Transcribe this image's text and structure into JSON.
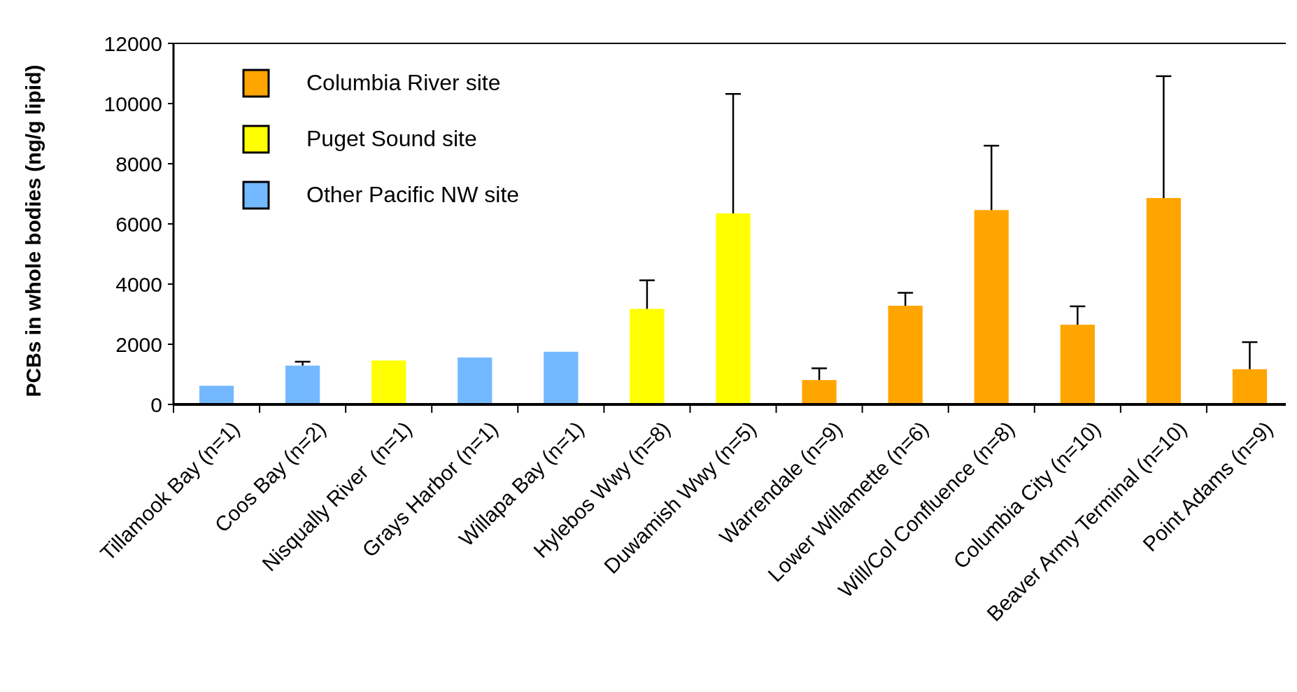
{
  "chart_data": {
    "type": "bar",
    "ylabel": "PCBs in whole bodies (ng/g lipid)",
    "categories": [
      "Tillamook Bay (n=1)",
      "Coos Bay (n=2)",
      "Nisqually River  (n=1)",
      "Grays Harbor (n=1)",
      "Willapa Bay (n=1)",
      "Hylebos Wwy (n=8)",
      "Duwamish Wwy (n=5)",
      "Warrendale (n=9)",
      "Lower Willamette (n=6)",
      "Will/Col Confluence (n=8)",
      "Columbia City (n=10)",
      "Beaver Army Terminal (n=10)",
      "Point Adams (n=9)"
    ],
    "series": [
      {
        "name": "Columbia River site",
        "color": "#ffa500",
        "values": [
          null,
          null,
          null,
          null,
          null,
          null,
          null,
          810,
          3280,
          6460,
          2650,
          6860,
          1170
        ],
        "errors": [
          null,
          null,
          null,
          null,
          null,
          null,
          null,
          [
            810,
            1200
          ],
          [
            3280,
            3710
          ],
          [
            6460,
            8600
          ],
          [
            2650,
            3260
          ],
          [
            6860,
            10910
          ],
          [
            1170,
            2070
          ]
        ]
      },
      {
        "name": "Puget Sound site",
        "color": "#ffff00",
        "values": [
          null,
          null,
          1460,
          null,
          null,
          3175,
          6350,
          null,
          null,
          null,
          null,
          null,
          null
        ],
        "errors": [
          null,
          null,
          null,
          null,
          null,
          [
            3175,
            4125
          ],
          [
            6350,
            10320
          ],
          null,
          null,
          null,
          null,
          null,
          null
        ]
      },
      {
        "name": "Other Pacific NW site",
        "color": "#74b9ff",
        "values": [
          620,
          1290,
          null,
          1560,
          1750,
          null,
          null,
          null,
          null,
          null,
          null,
          null,
          null
        ],
        "errors": [
          null,
          [
            1290,
            1420
          ],
          null,
          null,
          null,
          null,
          null,
          null,
          null,
          null,
          null,
          null,
          null
        ]
      }
    ],
    "ylim": [
      0,
      12000
    ],
    "yticks": [
      0,
      2000,
      4000,
      6000,
      8000,
      10000,
      12000
    ],
    "legend": "top left"
  }
}
